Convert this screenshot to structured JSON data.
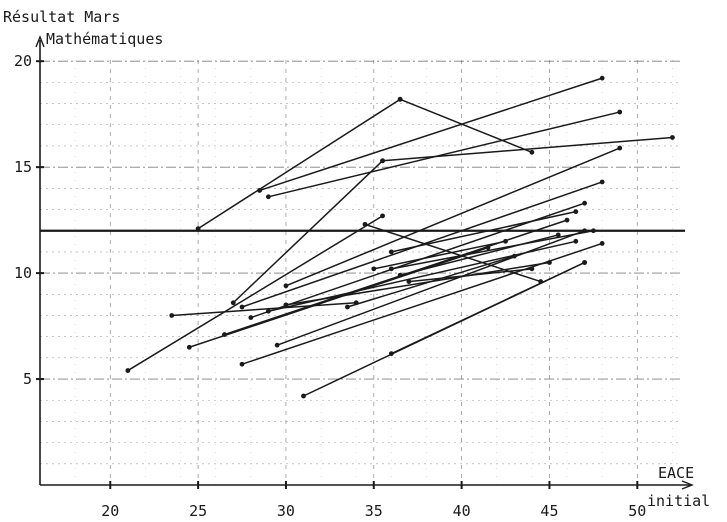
{
  "chart_data": {
    "type": "line",
    "title": "",
    "ylabel_line1": "Résultat Mars",
    "ylabel_line2": "Mathématiques",
    "xlabel_line1": "EACE",
    "xlabel_line2": "initial",
    "xlim": [
      16,
      53
    ],
    "ylim": [
      0,
      21
    ],
    "x_ticks": [
      20,
      25,
      30,
      35,
      40,
      45,
      50
    ],
    "y_ticks": [
      5,
      10,
      15,
      20
    ],
    "grid": true,
    "line_color": "#1a1a1a",
    "grid_color": "#555555",
    "reference_line_y": 12,
    "segments": [
      {
        "x": [
          25,
          36.5
        ],
        "y": [
          12.1,
          18.2
        ]
      },
      {
        "x": [
          36.5,
          44
        ],
        "y": [
          18.2,
          15.7
        ]
      },
      {
        "x": [
          28.5,
          48
        ],
        "y": [
          13.9,
          19.2
        ]
      },
      {
        "x": [
          29,
          49
        ],
        "y": [
          13.6,
          17.6
        ]
      },
      {
        "x": [
          35.5,
          52
        ],
        "y": [
          15.3,
          16.4
        ]
      },
      {
        "x": [
          27,
          35.5
        ],
        "y": [
          8.6,
          15.3
        ]
      },
      {
        "x": [
          30,
          49
        ],
        "y": [
          9.4,
          15.9
        ]
      },
      {
        "x": [
          27.5,
          48
        ],
        "y": [
          8.4,
          14.3
        ]
      },
      {
        "x": [
          28,
          47
        ],
        "y": [
          7.9,
          13.3
        ]
      },
      {
        "x": [
          24.5,
          41.5
        ],
        "y": [
          6.5,
          11.2
        ]
      },
      {
        "x": [
          23.5,
          34
        ],
        "y": [
          8.0,
          8.6
        ]
      },
      {
        "x": [
          34.5,
          44.5
        ],
        "y": [
          12.3,
          9.6
        ]
      },
      {
        "x": [
          26.5,
          46
        ],
        "y": [
          7.1,
          12.5
        ]
      },
      {
        "x": [
          27.5,
          48
        ],
        "y": [
          5.7,
          11.4
        ]
      },
      {
        "x": [
          29.5,
          47
        ],
        "y": [
          6.6,
          12.0
        ]
      },
      {
        "x": [
          21,
          35.5
        ],
        "y": [
          5.4,
          12.7
        ]
      },
      {
        "x": [
          29,
          46.5
        ],
        "y": [
          8.2,
          11.5
        ]
      },
      {
        "x": [
          30,
          45
        ],
        "y": [
          8.5,
          10.5
        ]
      },
      {
        "x": [
          33.5,
          43
        ],
        "y": [
          8.4,
          10.8
        ]
      },
      {
        "x": [
          31,
          47
        ],
        "y": [
          4.2,
          10.5
        ]
      },
      {
        "x": [
          36,
          47.5
        ],
        "y": [
          10.2,
          12.0
        ]
      },
      {
        "x": [
          36,
          46.5
        ],
        "y": [
          11.0,
          12.9
        ]
      },
      {
        "x": [
          35,
          42.5
        ],
        "y": [
          10.2,
          11.5
        ]
      },
      {
        "x": [
          37,
          44
        ],
        "y": [
          9.6,
          10.2
        ]
      },
      {
        "x": [
          36.5,
          45.5
        ],
        "y": [
          9.9,
          11.8
        ]
      },
      {
        "x": [
          36,
          47
        ],
        "y": [
          6.2,
          10.5
        ]
      }
    ]
  }
}
